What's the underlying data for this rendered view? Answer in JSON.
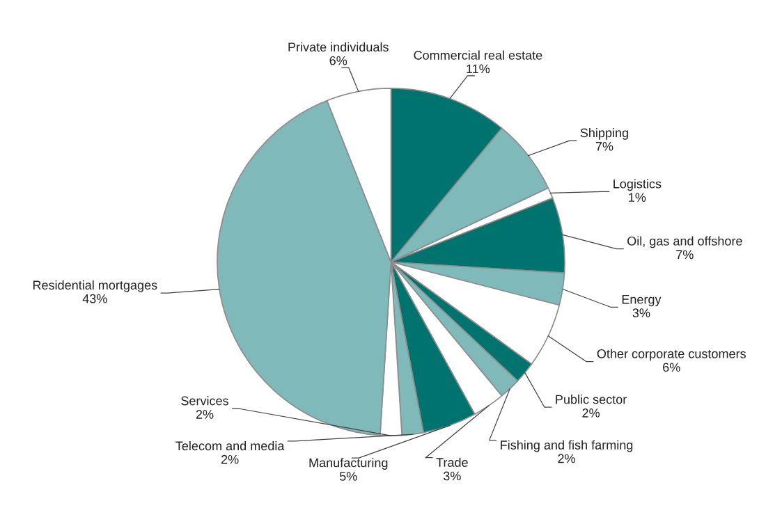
{
  "chart_data": {
    "type": "pie",
    "categories": [
      "Commercial real estate",
      "Shipping",
      "Logistics",
      "Oil, gas and offshore",
      "Energy",
      "Other corporate customers",
      "Public sector",
      "Fishing and fish farming",
      "Trade",
      "Manufacturing",
      "Telecom and media",
      "Services",
      "Residential mortgages",
      "Private individuals"
    ],
    "values": [
      11,
      7,
      1,
      7,
      3,
      6,
      2,
      2,
      3,
      5,
      2,
      2,
      43,
      6
    ],
    "colors": [
      "#00736f",
      "#80b9b9",
      "#ffffff",
      "#00736f",
      "#80b9b9",
      "#ffffff",
      "#00736f",
      "#80b9b9",
      "#ffffff",
      "#00736f",
      "#80b9b9",
      "#ffffff",
      "#80b9b9",
      "#ffffff"
    ],
    "value_labels": [
      "11%",
      "7%",
      "1%",
      "7%",
      "3%",
      "6%",
      "2%",
      "2%",
      "3%",
      "5%",
      "2%",
      "2%",
      "43%",
      "6%"
    ]
  }
}
